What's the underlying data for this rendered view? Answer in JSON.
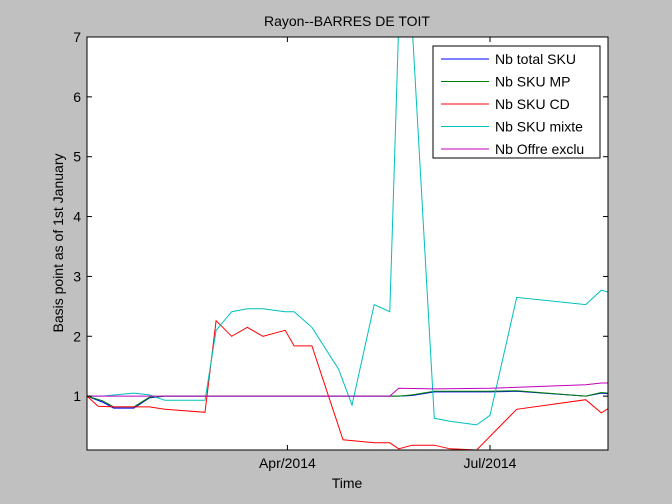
{
  "chart_data": {
    "type": "line",
    "title": "Rayon--BARRES DE TOIT",
    "xlabel": "Time",
    "ylabel": "Basis point as of 1st January",
    "xlim": [
      "2014-01-01",
      "2014-08-23"
    ],
    "ylim": [
      0.1,
      7
    ],
    "xticks": [
      {
        "date": "2014-04-01",
        "label": "Apr/2014"
      },
      {
        "date": "2014-07-01",
        "label": "Jul/2014"
      }
    ],
    "yticks": [
      1,
      2,
      3,
      4,
      5,
      6,
      7
    ],
    "grid": false,
    "legend_position": "top-right",
    "series": [
      {
        "name": "Nb total SKU",
        "color": "#0000ff",
        "points": [
          [
            "2014-01-01",
            1.0
          ],
          [
            "2014-01-08",
            0.9
          ],
          [
            "2014-01-13",
            0.8
          ],
          [
            "2014-01-22",
            0.8
          ],
          [
            "2014-01-29",
            0.97
          ],
          [
            "2014-02-05",
            1.0
          ],
          [
            "2014-02-23",
            1.0
          ],
          [
            "2014-03-21",
            1.0
          ],
          [
            "2014-04-12",
            1.0
          ],
          [
            "2014-05-10",
            1.0
          ],
          [
            "2014-05-21",
            1.0
          ],
          [
            "2014-05-27",
            1.01
          ],
          [
            "2014-06-06",
            1.07
          ],
          [
            "2014-07-01",
            1.07
          ],
          [
            "2014-07-13",
            1.08
          ],
          [
            "2014-08-13",
            1.0
          ],
          [
            "2014-08-20",
            1.05
          ],
          [
            "2014-08-23",
            1.04
          ]
        ]
      },
      {
        "name": "Nb SKU MP",
        "color": "#008000",
        "points": [
          [
            "2014-01-01",
            1.0
          ],
          [
            "2014-01-08",
            0.92
          ],
          [
            "2014-01-13",
            0.82
          ],
          [
            "2014-01-22",
            0.82
          ],
          [
            "2014-01-29",
            0.98
          ],
          [
            "2014-02-05",
            1.0
          ],
          [
            "2014-02-23",
            1.0
          ],
          [
            "2014-03-21",
            1.0
          ],
          [
            "2014-04-12",
            1.0
          ],
          [
            "2014-05-10",
            1.0
          ],
          [
            "2014-05-21",
            1.0
          ],
          [
            "2014-05-27",
            1.02
          ],
          [
            "2014-06-06",
            1.08
          ],
          [
            "2014-07-01",
            1.08
          ],
          [
            "2014-07-13",
            1.09
          ],
          [
            "2014-08-13",
            1.0
          ],
          [
            "2014-08-20",
            1.06
          ],
          [
            "2014-08-23",
            1.05
          ]
        ]
      },
      {
        "name": "Nb SKU CD",
        "color": "#ff0000",
        "points": [
          [
            "2014-01-01",
            1.0
          ],
          [
            "2014-01-06",
            0.83
          ],
          [
            "2014-01-13",
            0.82
          ],
          [
            "2014-01-29",
            0.82
          ],
          [
            "2014-02-05",
            0.78
          ],
          [
            "2014-02-23",
            0.73
          ],
          [
            "2014-02-28",
            2.26
          ],
          [
            "2014-03-07",
            2.0
          ],
          [
            "2014-03-14",
            2.15
          ],
          [
            "2014-03-21",
            2.0
          ],
          [
            "2014-03-31",
            2.1
          ],
          [
            "2014-04-04",
            1.84
          ],
          [
            "2014-04-12",
            1.84
          ],
          [
            "2014-04-26",
            0.27
          ],
          [
            "2014-05-10",
            0.22
          ],
          [
            "2014-05-17",
            0.22
          ],
          [
            "2014-05-21",
            0.12
          ],
          [
            "2014-05-27",
            0.18
          ],
          [
            "2014-06-06",
            0.18
          ],
          [
            "2014-06-13",
            0.12
          ],
          [
            "2014-06-25",
            0.1
          ],
          [
            "2014-07-13",
            0.78
          ],
          [
            "2014-08-13",
            0.94
          ],
          [
            "2014-08-20",
            0.72
          ],
          [
            "2014-08-23",
            0.79
          ]
        ]
      },
      {
        "name": "Nb SKU mixte",
        "color": "#00bfbf",
        "points": [
          [
            "2014-01-01",
            1.0
          ],
          [
            "2014-01-08",
            1.0
          ],
          [
            "2014-01-22",
            1.05
          ],
          [
            "2014-01-29",
            1.02
          ],
          [
            "2014-02-05",
            0.93
          ],
          [
            "2014-02-23",
            0.93
          ],
          [
            "2014-02-28",
            2.1
          ],
          [
            "2014-03-07",
            2.41
          ],
          [
            "2014-03-14",
            2.46
          ],
          [
            "2014-03-21",
            2.46
          ],
          [
            "2014-03-31",
            2.41
          ],
          [
            "2014-04-04",
            2.41
          ],
          [
            "2014-04-12",
            2.15
          ],
          [
            "2014-04-24",
            1.45
          ],
          [
            "2014-04-30",
            0.85
          ],
          [
            "2014-05-10",
            2.53
          ],
          [
            "2014-05-17",
            2.41
          ],
          [
            "2014-05-21",
            7.2
          ],
          [
            "2014-05-27",
            7.2
          ],
          [
            "2014-06-06",
            0.63
          ],
          [
            "2014-06-13",
            0.58
          ],
          [
            "2014-06-25",
            0.52
          ],
          [
            "2014-07-01",
            0.68
          ],
          [
            "2014-07-13",
            2.65
          ],
          [
            "2014-08-13",
            2.53
          ],
          [
            "2014-08-20",
            2.77
          ],
          [
            "2014-08-23",
            2.74
          ]
        ]
      },
      {
        "name": "Nb Offre exclu",
        "color": "#bf00bf",
        "points": [
          [
            "2014-01-01",
            1.0
          ],
          [
            "2014-02-23",
            1.0
          ],
          [
            "2014-05-17",
            1.0
          ],
          [
            "2014-05-21",
            1.13
          ],
          [
            "2014-06-06",
            1.12
          ],
          [
            "2014-07-01",
            1.13
          ],
          [
            "2014-08-13",
            1.19
          ],
          [
            "2014-08-20",
            1.22
          ],
          [
            "2014-08-23",
            1.22
          ]
        ]
      }
    ]
  }
}
